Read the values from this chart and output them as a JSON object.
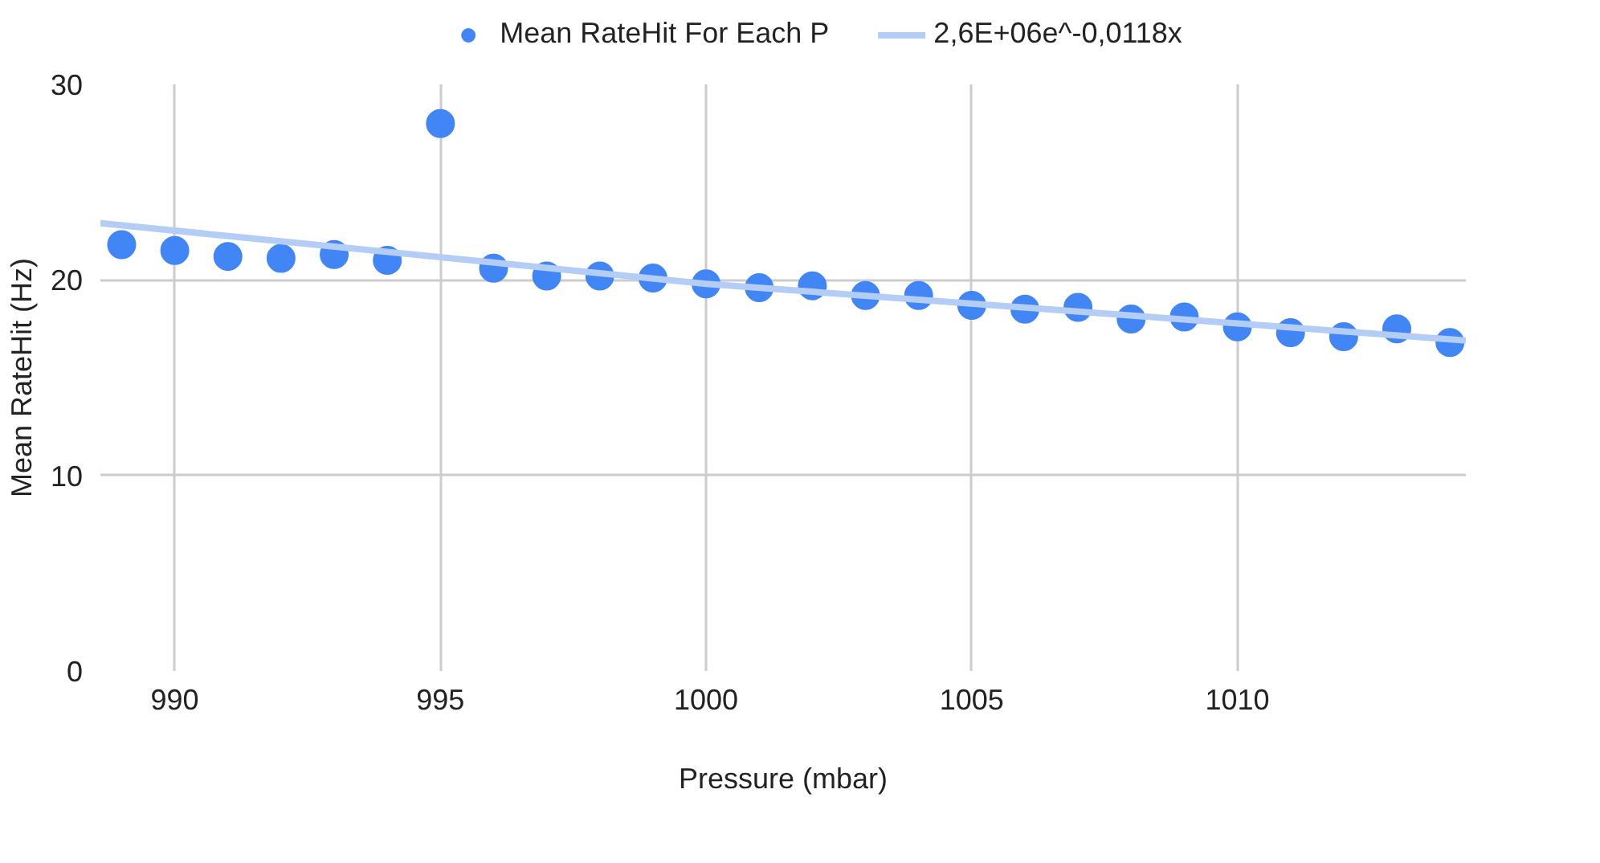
{
  "chart_data": {
    "type": "scatter",
    "xlabel": "Pressure (mbar)",
    "ylabel": "Mean RateHit (Hz)",
    "x": [
      989,
      990,
      991,
      992,
      993,
      994,
      995,
      996,
      997,
      998,
      999,
      1000,
      1001,
      1002,
      1003,
      1004,
      1005,
      1006,
      1007,
      1008,
      1009,
      1010,
      1011,
      1012,
      1013,
      1014
    ],
    "series": [
      {
        "name": "Mean RateHit For Each P",
        "color": "#4285f4",
        "marker": "circle",
        "values": [
          21.8,
          21.5,
          21.2,
          21.1,
          21.3,
          21.0,
          28.0,
          20.6,
          20.2,
          20.2,
          20.1,
          19.8,
          19.6,
          19.7,
          19.2,
          19.2,
          18.7,
          18.5,
          18.6,
          18.0,
          18.1,
          17.6,
          17.3,
          17.1,
          17.5,
          16.8
        ]
      },
      {
        "name": "2,6E+06e^-0,0118x",
        "color": "#b3cdf6",
        "type": "line",
        "x": [
          988.6,
          1000,
          1014.3
        ],
        "values": [
          22.9,
          19.8,
          16.9
        ]
      }
    ],
    "xlim": [
      988.6,
      1014.3
    ],
    "ylim": [
      0,
      30
    ],
    "xticks": [
      990,
      995,
      1000,
      1005,
      1010
    ],
    "yticks": [
      0,
      10,
      20,
      30
    ],
    "grid": true,
    "legend": "top"
  }
}
